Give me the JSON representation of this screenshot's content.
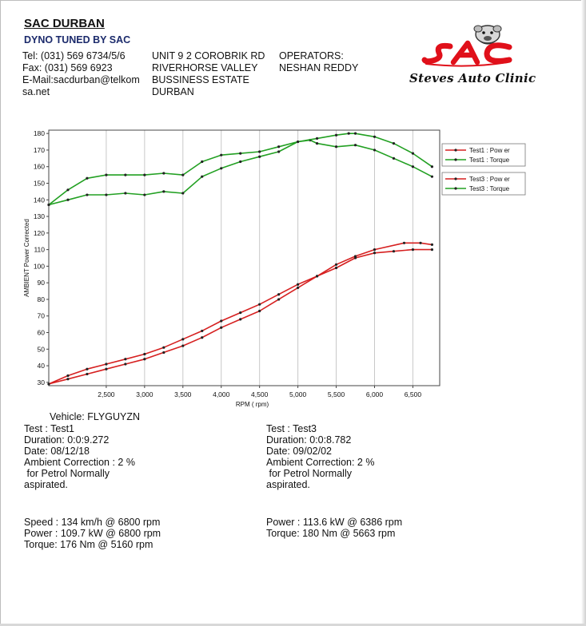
{
  "header": {
    "company": "SAC DURBAN",
    "tagline": "DYNO TUNED BY SAC",
    "contact": [
      "Tel: (031) 569 6734/5/6",
      "Fax: (031) 569 6923",
      "E-Mail:sacdurban@telkom",
      "sa.net"
    ],
    "address": [
      "UNIT 9 2 COROBRIK RD",
      "RIVERHORSE VALLEY",
      "BUSSINESS ESTATE",
      "DURBAN"
    ],
    "operators": [
      "OPERATORS:",
      "NESHAN REDDY"
    ]
  },
  "logo": {
    "wordmark": "SAC",
    "clinic": "Steves Auto Clinic",
    "color": "#e0101a"
  },
  "chart_data": {
    "type": "line",
    "ylabel": "AMBIENT Power Corrected",
    "xlabel": "RPM ( rpm)",
    "xlim": [
      1750,
      6850
    ],
    "ylim": [
      28,
      182
    ],
    "xticks": [
      2500,
      3000,
      3500,
      4000,
      4500,
      5000,
      5500,
      6000,
      6500
    ],
    "xtick_labels": [
      "2,500",
      "3,000",
      "3,500",
      "4,000",
      "4,500",
      "5,000",
      "5,500",
      "6,000",
      "6,500"
    ],
    "yticks": [
      30,
      40,
      50,
      60,
      70,
      80,
      90,
      100,
      110,
      120,
      130,
      140,
      150,
      160,
      170,
      180
    ],
    "grid": true,
    "legend_position": "right",
    "series": [
      {
        "name": "Test1 : Pow er",
        "color": "#d62020",
        "x": [
          1750,
          2000,
          2250,
          2500,
          2750,
          3000,
          3250,
          3500,
          3750,
          4000,
          4250,
          4500,
          4750,
          5000,
          5250,
          5500,
          5750,
          6000,
          6250,
          6500,
          6750
        ],
        "y": [
          29,
          32,
          35,
          38,
          41,
          44,
          48,
          52,
          57,
          63,
          68,
          73,
          80,
          87,
          94,
          99,
          105,
          108,
          109,
          110,
          110
        ]
      },
      {
        "name": "Test1 : Torque",
        "color": "#22a022",
        "x": [
          1750,
          2000,
          2250,
          2500,
          2750,
          3000,
          3250,
          3500,
          3750,
          4000,
          4250,
          4500,
          4750,
          5000,
          5160,
          5250,
          5500,
          5750,
          6000,
          6250,
          6500,
          6750
        ],
        "y": [
          137,
          140,
          143,
          143,
          144,
          143,
          145,
          144,
          154,
          159,
          163,
          166,
          169,
          175,
          176,
          174,
          172,
          173,
          170,
          165,
          160,
          154
        ]
      },
      {
        "name": "Test3 : Pow er",
        "color": "#d62020",
        "x": [
          1750,
          2000,
          2250,
          2500,
          2750,
          3000,
          3250,
          3500,
          3750,
          4000,
          4250,
          4500,
          4750,
          5000,
          5250,
          5500,
          5750,
          6000,
          6386,
          6600,
          6750
        ],
        "y": [
          29,
          34,
          38,
          41,
          44,
          47,
          51,
          56,
          61,
          67,
          72,
          77,
          83,
          89,
          94,
          101,
          106,
          110,
          114,
          114,
          113
        ]
      },
      {
        "name": "Test3 : Torque",
        "color": "#22a022",
        "x": [
          1750,
          2000,
          2250,
          2500,
          2750,
          3000,
          3250,
          3500,
          3750,
          4000,
          4250,
          4500,
          4750,
          5000,
          5250,
          5500,
          5663,
          5750,
          6000,
          6250,
          6500,
          6750
        ],
        "y": [
          137,
          146,
          153,
          155,
          155,
          155,
          156,
          155,
          163,
          167,
          168,
          169,
          172,
          175,
          177,
          179,
          180,
          180,
          178,
          174,
          168,
          160
        ]
      }
    ]
  },
  "vehicle": "Vehicle: FLYGUYZN",
  "tests": [
    {
      "lines": [
        "Test    : Test1",
        "Duration: 0:0:9.272",
        "Date: 08/12/18",
        "Ambient Correction : 2 %",
        " for Petrol Normally",
        "aspirated."
      ],
      "summary": [
        "Speed : 134 km/h @ 6800 rpm",
        "Power : 109.7 kW @ 6800 rpm",
        "Torque: 176 Nm @ 5160 rpm"
      ]
    },
    {
      "lines": [
        "Test    : Test3",
        "Duration: 0:0:8.782",
        "Date: 09/02/02",
        "Ambient Correction: 2 %",
        " for Petrol Normally",
        "aspirated."
      ],
      "summary": [
        "Power : 113.6 kW @ 6386 rpm",
        "Torque: 180 Nm @ 5663 rpm"
      ]
    }
  ]
}
